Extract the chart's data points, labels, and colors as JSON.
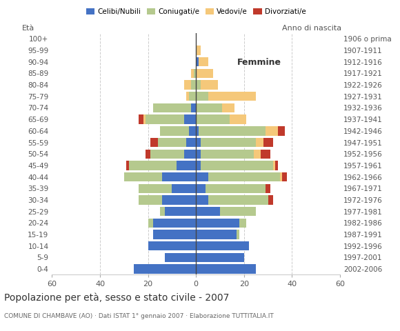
{
  "age_groups": [
    "0-4",
    "5-9",
    "10-14",
    "15-19",
    "20-24",
    "25-29",
    "30-34",
    "35-39",
    "40-44",
    "45-49",
    "50-54",
    "55-59",
    "60-64",
    "65-69",
    "70-74",
    "75-79",
    "80-84",
    "85-89",
    "90-94",
    "95-99",
    "100+"
  ],
  "birth_years": [
    "2002-2006",
    "1997-2001",
    "1992-1996",
    "1987-1991",
    "1982-1986",
    "1977-1981",
    "1972-1976",
    "1967-1971",
    "1962-1966",
    "1957-1961",
    "1952-1956",
    "1947-1951",
    "1942-1946",
    "1937-1941",
    "1932-1936",
    "1927-1931",
    "1922-1926",
    "1917-1921",
    "1912-1916",
    "1907-1911",
    "1906 o prima"
  ],
  "male": {
    "celibi": [
      26,
      13,
      20,
      18,
      18,
      13,
      14,
      10,
      14,
      8,
      5,
      4,
      3,
      5,
      2,
      0,
      0,
      0,
      0,
      0,
      0
    ],
    "coniugati": [
      0,
      0,
      0,
      0,
      2,
      2,
      10,
      14,
      16,
      20,
      14,
      12,
      12,
      16,
      16,
      3,
      2,
      1,
      0,
      0,
      0
    ],
    "vedovi": [
      0,
      0,
      0,
      0,
      0,
      0,
      0,
      0,
      0,
      0,
      0,
      0,
      0,
      1,
      0,
      1,
      3,
      1,
      0,
      0,
      0
    ],
    "divorziati": [
      0,
      0,
      0,
      0,
      0,
      0,
      0,
      0,
      0,
      1,
      2,
      3,
      0,
      2,
      0,
      0,
      0,
      0,
      0,
      0,
      0
    ]
  },
  "female": {
    "nubili": [
      25,
      20,
      22,
      17,
      18,
      10,
      5,
      4,
      5,
      2,
      2,
      2,
      1,
      0,
      0,
      0,
      0,
      0,
      1,
      0,
      0
    ],
    "coniugate": [
      0,
      0,
      0,
      1,
      3,
      15,
      25,
      25,
      30,
      30,
      22,
      23,
      28,
      14,
      11,
      5,
      2,
      0,
      0,
      0,
      0
    ],
    "vedove": [
      0,
      0,
      0,
      0,
      0,
      0,
      0,
      0,
      1,
      1,
      3,
      3,
      5,
      7,
      5,
      20,
      7,
      7,
      4,
      2,
      0
    ],
    "divorziate": [
      0,
      0,
      0,
      0,
      0,
      0,
      2,
      2,
      2,
      1,
      4,
      4,
      3,
      0,
      0,
      0,
      0,
      0,
      0,
      0,
      0
    ]
  },
  "colors": {
    "celibi": "#4472c4",
    "coniugati": "#b5c98e",
    "vedovi": "#f5c87a",
    "divorziati": "#c0392b"
  },
  "title": "Popolazione per età, sesso e stato civile - 2007",
  "subtitle": "COMUNE DI CHAMBAVE (AO) · Dati ISTAT 1° gennaio 2007 · Elaborazione TUTTITALIA.IT",
  "xlabel_right": "Femmine",
  "ylabel": "Età",
  "ylabel_right": "Anno di nascita",
  "xlim": 60,
  "legend_labels": [
    "Celibi/Nubili",
    "Coniugati/e",
    "Vedovi/e",
    "Divorziati/e"
  ],
  "bg_color": "#ffffff",
  "grid_color": "#cccccc"
}
